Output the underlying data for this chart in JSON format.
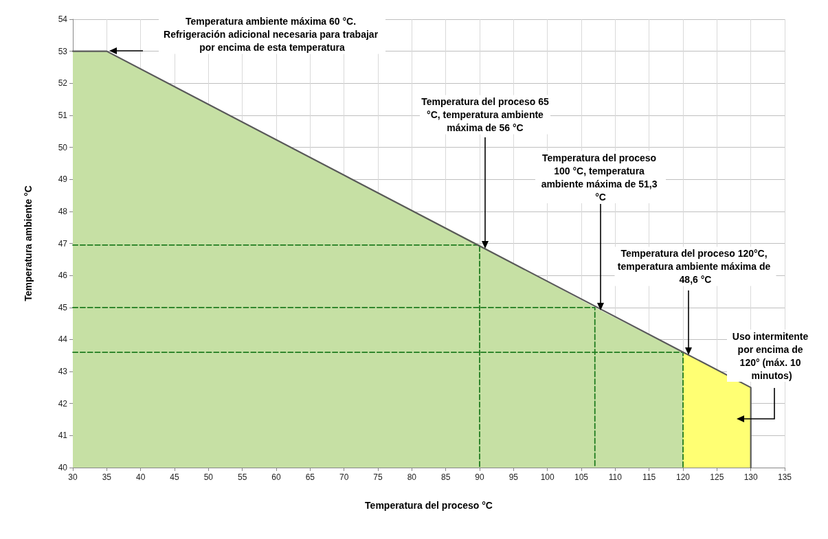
{
  "chart_data": {
    "type": "area",
    "xlabel": "Temperatura del proceso °C",
    "ylabel": "Temperatura ambiente °C",
    "xlim": [
      30,
      135
    ],
    "xticks": [
      30,
      35,
      40,
      45,
      50,
      55,
      60,
      65,
      70,
      75,
      80,
      85,
      90,
      95,
      100,
      105,
      110,
      115,
      120,
      125,
      130,
      135
    ],
    "ylim": [
      40,
      54
    ],
    "yticks": [
      40,
      41,
      42,
      43,
      44,
      45,
      46,
      47,
      48,
      49,
      50,
      51,
      52,
      53,
      54
    ],
    "grid": true,
    "marker": "none",
    "series": [
      {
        "color": "#c6e0a4",
        "x": [
          30,
          35,
          90,
          107,
          120
        ],
        "values": [
          53,
          53,
          46.95,
          45,
          43.6
        ]
      },
      {
        "color": "#ffff73",
        "x": [
          120,
          130
        ],
        "values": [
          43.6,
          42.5
        ]
      },
      {
        "type": "line",
        "color": "#595959",
        "x": [
          30,
          35,
          130,
          130
        ],
        "values": [
          53,
          53,
          42.5,
          40
        ]
      },
      {
        "type": "line",
        "color": "#1e7b1e",
        "line_style": "dashed",
        "x": [
          30,
          90,
          90
        ],
        "values": [
          46.95,
          46.95,
          40
        ]
      },
      {
        "type": "line",
        "color": "#1e7b1e",
        "line_style": "dashed",
        "x": [
          30,
          107,
          107
        ],
        "values": [
          45,
          45,
          40
        ]
      },
      {
        "type": "line",
        "color": "#1e7b1e",
        "line_style": "dashed",
        "x": [
          30,
          120,
          120
        ],
        "values": [
          43.6,
          43.6,
          40
        ]
      }
    ],
    "annotations": [
      "Temperatura ambiente máxima 60 °C. Refrigeración adicional necesaria para trabajar por encima de esta temperatura",
      "Temperatura del proceso 65 °C, temperatura ambiente máxima de 56 °C",
      "Temperatura del proceso 100 °C, temperatura ambiente máxima de 51,3 °C",
      "Temperatura del proceso 120°C, temperatura ambiente máxima de 48,6 °C",
      "Uso intermitente por encima de 120° (máx. 10 minutos)"
    ]
  }
}
